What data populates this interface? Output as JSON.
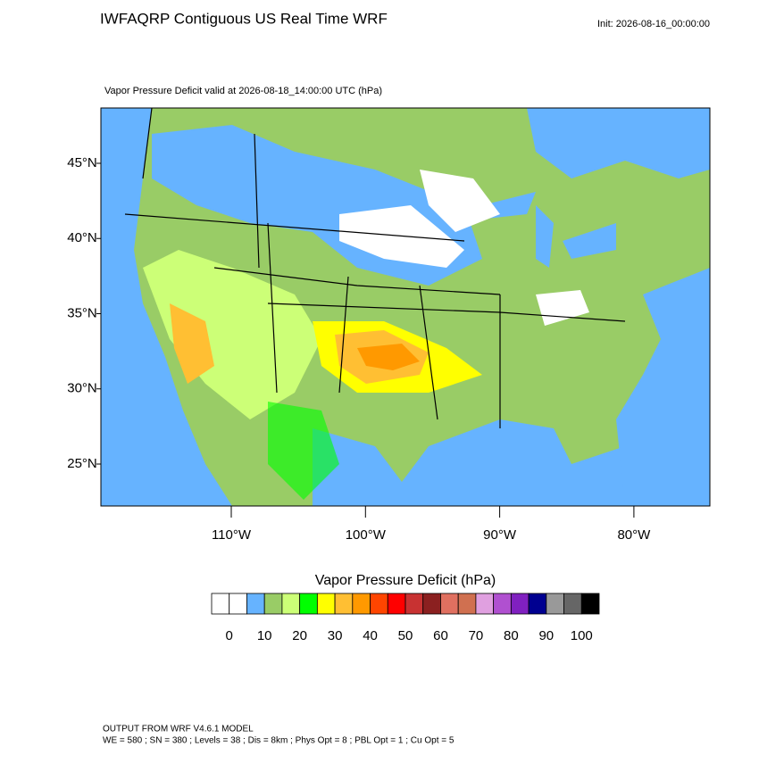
{
  "header": {
    "title": "IWFAQRP Contiguous US Real Time WRF",
    "init": "Init: 2026-08-16_00:00:00"
  },
  "map": {
    "subtitle": "Vapor Pressure Deficit valid at 2026-08-18_14:00:00 UTC   (hPa)",
    "lat_labels": [
      "45°N",
      "40°N",
      "35°N",
      "30°N",
      "25°N"
    ],
    "lon_labels": [
      "110°W",
      "100°W",
      "90°W",
      "80°W"
    ]
  },
  "colorbar": {
    "title": "Vapor Pressure Deficit  (hPa)",
    "colors": [
      "#ffffff",
      "#ffffff",
      "#66b3ff",
      "#99cc66",
      "#ccff77",
      "#00ff00",
      "#ffff00",
      "#ffbf33",
      "#ff9900",
      "#ff4500",
      "#ff0000",
      "#c83232",
      "#8b2020",
      "#e07060",
      "#d07050",
      "#e0a0e0",
      "#b050d0",
      "#8020c0",
      "#000090",
      "#999999",
      "#666666",
      "#000000"
    ],
    "labels": [
      0,
      10,
      20,
      30,
      40,
      50,
      60,
      70,
      80,
      90,
      100
    ]
  },
  "footer": {
    "lines": [
      "OUTPUT FROM WRF V4.6.1 MODEL",
      "WE = 580 ; SN = 380 ; Levels = 38 ; Dis = 8km ; Phys Opt = 8 ; PBL Opt = 1 ; Cu Opt = 5"
    ]
  }
}
